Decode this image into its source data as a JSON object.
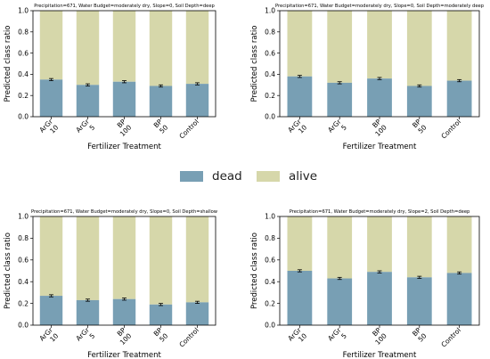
{
  "colors": {
    "dead": "#789fb4",
    "alive": "#d6d7aa",
    "error": "#000000"
  },
  "legend": {
    "dead": "dead",
    "alive": "alive"
  },
  "chart_data": [
    {
      "type": "bar",
      "stacked": true,
      "title": "Precipitation=671, Water Budget=moderately dry, Slope=0, Soil Depth=deep",
      "xlabel": "Fertilizer Treatment",
      "ylabel": "Predicted class ratio",
      "ylim": [
        0,
        1.0
      ],
      "yticks": [
        "0.0",
        "0.2",
        "0.4",
        "0.6",
        "0.8",
        "1.0"
      ],
      "categories": [
        [
          "ArGr",
          "10"
        ],
        [
          "ArGr",
          "5"
        ],
        [
          "BP",
          "100"
        ],
        [
          "BP",
          "50"
        ],
        [
          "Control"
        ]
      ],
      "series": [
        {
          "name": "dead",
          "values": [
            0.35,
            0.3,
            0.33,
            0.29,
            0.31
          ]
        },
        {
          "name": "alive",
          "values": [
            0.65,
            0.7,
            0.67,
            0.71,
            0.69
          ]
        }
      ]
    },
    {
      "type": "bar",
      "stacked": true,
      "title": "Precipitation=671, Water Budget=moderately dry, Slope=0, Soil Depth=moderately deep",
      "xlabel": "Fertilizer Treatment",
      "ylabel": "Predicted class ratio",
      "ylim": [
        0,
        1.0
      ],
      "yticks": [
        "0.0",
        "0.2",
        "0.4",
        "0.6",
        "0.8",
        "1.0"
      ],
      "categories": [
        [
          "ArGr",
          "10"
        ],
        [
          "ArGr",
          "5"
        ],
        [
          "BP",
          "100"
        ],
        [
          "BP",
          "50"
        ],
        [
          "Control"
        ]
      ],
      "series": [
        {
          "name": "dead",
          "values": [
            0.38,
            0.32,
            0.36,
            0.29,
            0.34
          ]
        },
        {
          "name": "alive",
          "values": [
            0.62,
            0.68,
            0.64,
            0.71,
            0.66
          ]
        }
      ]
    },
    {
      "type": "bar",
      "stacked": true,
      "title": "Precipitation=671, Water Budget=moderately dry, Slope=0, Soil Depth=shallow",
      "xlabel": "Fertilizer Treatment",
      "ylabel": "Predicted class ratio",
      "ylim": [
        0,
        1.0
      ],
      "yticks": [
        "0.0",
        "0.2",
        "0.4",
        "0.6",
        "0.8",
        "1.0"
      ],
      "categories": [
        [
          "ArGr",
          "10"
        ],
        [
          "ArGr",
          "5"
        ],
        [
          "BP",
          "100"
        ],
        [
          "BP",
          "50"
        ],
        [
          "Control"
        ]
      ],
      "series": [
        {
          "name": "dead",
          "values": [
            0.27,
            0.23,
            0.24,
            0.19,
            0.21
          ]
        },
        {
          "name": "alive",
          "values": [
            0.73,
            0.77,
            0.76,
            0.81,
            0.79
          ]
        }
      ]
    },
    {
      "type": "bar",
      "stacked": true,
      "title": "Precipitation=671, Water Budget=moderately dry, Slope=2, Soil Depth=deep",
      "xlabel": "Fertilizer Treatment",
      "ylabel": "Predicted class ratio",
      "ylim": [
        0,
        1.0
      ],
      "yticks": [
        "0.0",
        "0.2",
        "0.4",
        "0.6",
        "0.8",
        "1.0"
      ],
      "categories": [
        [
          "ArGr",
          "10"
        ],
        [
          "ArGr",
          "5"
        ],
        [
          "BP",
          "100"
        ],
        [
          "BP",
          "50"
        ],
        [
          "Control"
        ]
      ],
      "series": [
        {
          "name": "dead",
          "values": [
            0.5,
            0.43,
            0.49,
            0.44,
            0.48
          ]
        },
        {
          "name": "alive",
          "values": [
            0.5,
            0.57,
            0.51,
            0.56,
            0.52
          ]
        }
      ]
    }
  ]
}
